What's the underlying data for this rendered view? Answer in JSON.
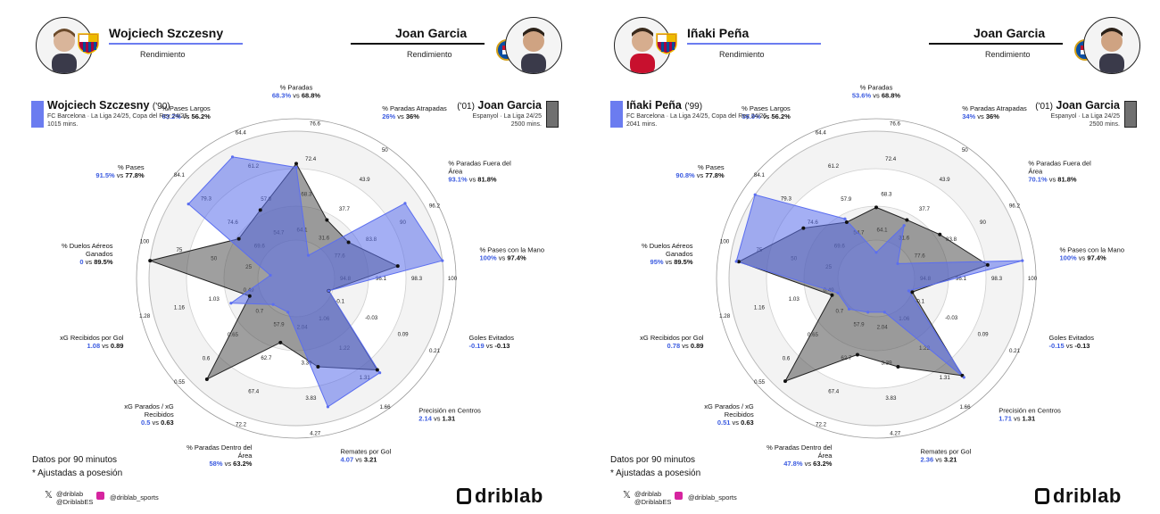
{
  "colors": {
    "primary": "#6b7cf0",
    "primary_fill": "rgba(90,110,235,0.55)",
    "primary_stroke": "#5b6ef0",
    "secondary": "#707070",
    "secondary_fill": "rgba(80,80,80,0.55)",
    "secondary_stroke": "#222222",
    "value_blue": "#3b5be0"
  },
  "vs_word": "vs",
  "panels": [
    {
      "header": {
        "left_name": "Wojciech Szczesny",
        "left_sub": "Rendimiento",
        "right_name": "Joan Garcia",
        "right_sub": "Rendimiento"
      },
      "legend": {
        "left_name": "Wojciech Szczesny",
        "left_year": "('90)",
        "left_meta1": "FC Barcelona · La Liga 24/25, Copa del Rey 24/25, . . .",
        "left_meta2": "1015 mins.",
        "right_name": "Joan Garcia",
        "right_year": "('01)",
        "right_meta1": "Espanyol · La Liga 24/25",
        "right_meta2": "2500 mins."
      },
      "footer": {
        "note1": "Datos por 90 minutos",
        "note2": "* Ajustadas a posesión",
        "twitter1": "@driblab",
        "twitter2": "@DriblabES",
        "instagram": "@driblab_sports",
        "brand": "driblab"
      }
    },
    {
      "header": {
        "left_name": "Iñaki Peña",
        "left_sub": "Rendimiento",
        "right_name": "Joan Garcia",
        "right_sub": "Rendimiento"
      },
      "legend": {
        "left_name": "Iñaki Peña",
        "left_year": "('99)",
        "left_meta1": "FC Barcelona · La Liga 24/25, Copa del Rey 24/25, . . .",
        "left_meta2": "2041 mins.",
        "right_name": "Joan Garcia",
        "right_year": "('01)",
        "right_meta1": "Espanyol · La Liga 24/25",
        "right_meta2": "2500 mins."
      },
      "footer": {
        "note1": "Datos por 90 minutos",
        "note2": "* Ajustadas a posesión",
        "twitter1": "@driblab",
        "twitter2": "@DriblabES",
        "instagram": "@driblab_sports",
        "brand": "driblab"
      }
    }
  ],
  "chart_data": [
    {
      "type": "radar",
      "metrics": [
        {
          "name": [
            "% Paradas"
          ],
          "p1": "68.3%",
          "p2": "68.8%",
          "ticks": [
            "64.1",
            "68.3",
            "72.4",
            "76.6"
          ],
          "r1": 0.71,
          "r2": 0.74
        },
        {
          "name": [
            "% Paradas Atrapadas"
          ],
          "p1": "26%",
          "p2": "36%",
          "ticks": [
            "31.6",
            "37.7",
            "43.9",
            "50"
          ],
          "r1": 0.03,
          "r2": 0.35
        },
        {
          "name": [
            "% Paradas Fuera del",
            "Área"
          ],
          "p1": "93.1%",
          "p2": "81.8%",
          "ticks": [
            "77.6",
            "83.8",
            "90",
            "96.2"
          ],
          "r1": 0.88,
          "r2": 0.33
        },
        {
          "name": [
            "% Pases con la Mano"
          ],
          "p1": "100%",
          "p2": "97.4%",
          "ticks": [
            "94.8",
            "96.1",
            "98.3",
            "100"
          ],
          "r1": 1.0,
          "r2": 0.64
        },
        {
          "name": [
            "Goles Evitados"
          ],
          "p1": "-0.19",
          "p2": "-0.13",
          "ticks": [
            "-0.1",
            "-0.03",
            "0.09",
            "0.21"
          ],
          "r1": 0.1,
          "r2": 0.1
        },
        {
          "name": [
            "Precisión en Centros"
          ],
          "p1": "2.14",
          "p2": "1.31",
          "ticks": [
            "1.06",
            "1.22",
            "1.31",
            "1.66"
          ],
          "r1": 0.83,
          "r2": 0.8
        },
        {
          "name": [
            "Remates por Gol"
          ],
          "p1": "4.07",
          "p2": "3.21",
          "ticks": [
            "2.04",
            "3.39",
            "3.83",
            "4.27"
          ],
          "r1": 0.88,
          "r2": 0.55
        },
        {
          "name": [
            "% Paradas Dentro del",
            "Área"
          ],
          "p1": "58%",
          "p2": "63.2%",
          "ticks": [
            "57.9",
            "62.7",
            "67.4",
            "72.2"
          ],
          "r1": 0.1,
          "r2": 0.35
        },
        {
          "name": [
            "xG Parados / xG",
            "Recibidos"
          ],
          "p1": "0.5",
          "p2": "0.63",
          "ticks": [
            "0.7",
            "0.65",
            "0.6",
            "0.55"
          ],
          "r1": 0.1,
          "r2": 0.9
        },
        {
          "name": [
            "xG Recibidos por Gol"
          ],
          "p1": "1.08",
          "p2": "0.89",
          "ticks": [
            "0.49",
            "1.03",
            "1.16",
            "1.28"
          ],
          "r1": 0.38,
          "r2": 0.22
        },
        {
          "name": [
            "% Duelos Aéreos",
            "Ganados"
          ],
          "p1": "0",
          "p2": "89.5%",
          "ticks": [
            "25",
            "50",
            "75",
            "100"
          ],
          "r1": 0.03,
          "r2": 1.0
        },
        {
          "name": [
            "% Pases"
          ],
          "p1": "91.5%",
          "p2": "77.8%",
          "ticks": [
            "69.6",
            "74.6",
            "79.3",
            "84.1"
          ],
          "r1": 0.87,
          "r2": 0.38
        },
        {
          "name": [
            "% Pases Largos"
          ],
          "p1": "63.2%",
          "p2": "56.2%",
          "ticks": [
            "54.7",
            "57.9",
            "61.2",
            "64.4"
          ],
          "r1": 0.92,
          "r2": 0.44
        }
      ]
    },
    {
      "type": "radar",
      "metrics": [
        {
          "name": [
            "% Paradas"
          ],
          "p1": "53.6%",
          "p2": "68.8%",
          "ticks": [
            "64.1",
            "68.3",
            "72.4",
            "76.6"
          ],
          "r1": 0.03,
          "r2": 0.39
        },
        {
          "name": [
            "% Paradas Atrapadas"
          ],
          "p1": "34%",
          "p2": "36%",
          "ticks": [
            "31.6",
            "37.7",
            "43.9",
            "50"
          ],
          "r1": 0.3,
          "r2": 0.35
        },
        {
          "name": [
            "% Paradas Fuera del",
            "Área"
          ],
          "p1": "70.1%",
          "p2": "81.8%",
          "ticks": [
            "77.6",
            "83.8",
            "90",
            "96.2"
          ],
          "r1": 0.03,
          "r2": 0.44
        },
        {
          "name": [
            "% Pases con la Mano"
          ],
          "p1": "100%",
          "p2": "97.4%",
          "ticks": [
            "94.8",
            "96.1",
            "98.3",
            "100"
          ],
          "r1": 1.0,
          "r2": 0.72
        },
        {
          "name": [
            "Goles Evitados"
          ],
          "p1": "-0.15",
          "p2": "-0.13",
          "ticks": [
            "-0.1",
            "-0.03",
            "0.09",
            "0.21"
          ],
          "r1": 0.1,
          "r2": 0.13
        },
        {
          "name": [
            "Precisión en Centros"
          ],
          "p1": "1.71",
          "p2": "1.31",
          "ticks": [
            "1.06",
            "1.22",
            "1.31",
            "1.66"
          ],
          "r1": 0.88,
          "r2": 0.86
        },
        {
          "name": [
            "Remates por Gol"
          ],
          "p1": "2.36",
          "p2": "3.21",
          "ticks": [
            "2.04",
            "3.39",
            "3.83",
            "4.27"
          ],
          "r1": 0.1,
          "r2": 0.55
        },
        {
          "name": [
            "% Paradas Dentro del",
            "Área"
          ],
          "p1": "47.8%",
          "p2": "63.2%",
          "ticks": [
            "57.9",
            "62.7",
            "67.4",
            "72.2"
          ],
          "r1": 0.1,
          "r2": 0.45
        },
        {
          "name": [
            "xG Parados / xG",
            "Recibidos"
          ],
          "p1": "0.51",
          "p2": "0.63",
          "ticks": [
            "0.7",
            "0.65",
            "0.6",
            "0.55"
          ],
          "r1": 0.15,
          "r2": 0.92
        },
        {
          "name": [
            "xG Recibidos por Gol"
          ],
          "p1": "0.78",
          "p2": "0.89",
          "ticks": [
            "0.49",
            "1.03",
            "1.16",
            "1.28"
          ],
          "r1": 0.15,
          "r2": 0.2
        },
        {
          "name": [
            "% Duelos Aéreos",
            "Ganados"
          ],
          "p1": "95%",
          "p2": "89.5%",
          "ticks": [
            "25",
            "50",
            "75",
            "100"
          ],
          "r1": 0.95,
          "r2": 0.93
        },
        {
          "name": [
            "% Pases"
          ],
          "p1": "90.8%",
          "p2": "77.8%",
          "ticks": [
            "69.6",
            "74.6",
            "79.3",
            "84.1"
          ],
          "r1": 1.0,
          "r2": 0.53
        },
        {
          "name": [
            "% Pases Largos"
          ],
          "p1": "56.9%",
          "p2": "56.2%",
          "ticks": [
            "54.7",
            "57.9",
            "61.2",
            "64.4"
          ],
          "r1": 0.36,
          "r2": 0.33
        }
      ]
    }
  ]
}
